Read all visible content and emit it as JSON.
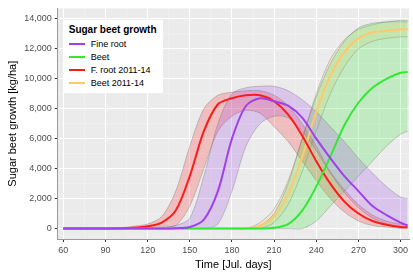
{
  "chart_data": {
    "type": "line",
    "x_label": "Time [Jul. days]",
    "y_label": "Sugar beet growth [kg/ha]",
    "legend_title": "Sugar beet growth",
    "legend": "top left",
    "grid": true,
    "x": [
      60,
      70,
      80,
      90,
      100,
      110,
      120,
      130,
      140,
      150,
      160,
      170,
      180,
      190,
      200,
      210,
      220,
      230,
      240,
      250,
      260,
      270,
      280,
      290,
      300,
      305
    ],
    "xlim": [
      56,
      306
    ],
    "xticks": [
      60,
      90,
      120,
      150,
      180,
      210,
      240,
      270,
      300
    ],
    "ylim": [
      -700,
      14700
    ],
    "yticks": [
      0,
      2000,
      4000,
      6000,
      8000,
      10000,
      12000,
      14000
    ],
    "series": [
      {
        "name": "Fine root",
        "color": "#a040e8",
        "values": [
          0,
          0,
          0,
          0,
          0,
          0,
          0,
          0,
          20,
          100,
          600,
          2500,
          6000,
          8200,
          8700,
          8500,
          8200,
          7400,
          6000,
          4700,
          3500,
          2500,
          1500,
          900,
          400,
          200
        ],
        "lower": [
          0,
          0,
          0,
          0,
          0,
          0,
          0,
          0,
          0,
          0,
          0,
          300,
          2500,
          5500,
          7000,
          7500,
          7400,
          6500,
          5200,
          3700,
          2400,
          1400,
          700,
          300,
          100,
          50
        ],
        "upper": [
          0,
          0,
          0,
          0,
          0,
          0,
          0,
          50,
          200,
          700,
          3500,
          7000,
          9000,
          9400,
          9500,
          9500,
          9200,
          8600,
          7800,
          6800,
          5800,
          4700,
          3700,
          2800,
          2100,
          2000
        ]
      },
      {
        "name": "Beet",
        "color": "#33e833",
        "values": [
          0,
          0,
          0,
          0,
          0,
          0,
          0,
          0,
          0,
          0,
          0,
          0,
          0,
          0,
          0,
          50,
          300,
          1200,
          2800,
          4800,
          6900,
          8400,
          9400,
          10000,
          10400,
          10450
        ],
        "lower": [
          0,
          0,
          0,
          0,
          0,
          0,
          0,
          0,
          0,
          0,
          0,
          0,
          0,
          0,
          0,
          0,
          0,
          0,
          500,
          1500,
          2500,
          3500,
          4500,
          5500,
          6300,
          6500
        ],
        "upper": [
          0,
          0,
          0,
          0,
          0,
          0,
          0,
          0,
          0,
          0,
          0,
          0,
          0,
          0,
          200,
          1000,
          3000,
          6000,
          8800,
          11000,
          12500,
          13400,
          13700,
          13800,
          13900,
          13900
        ]
      },
      {
        "name": "F. root 2011-14",
        "color": "#ff1a1a",
        "values": [
          0,
          0,
          0,
          0,
          20,
          50,
          150,
          400,
          1200,
          3500,
          6500,
          8300,
          8700,
          8900,
          8900,
          8500,
          7600,
          6200,
          4500,
          3000,
          1800,
          1000,
          500,
          250,
          100,
          80
        ],
        "lower": [
          0,
          0,
          0,
          0,
          0,
          0,
          50,
          150,
          200,
          1500,
          4000,
          6500,
          7500,
          7900,
          7700,
          6800,
          5800,
          4500,
          3200,
          2000,
          1100,
          500,
          200,
          100,
          0,
          0
        ],
        "upper": [
          0,
          0,
          0,
          0,
          50,
          150,
          300,
          800,
          2500,
          5500,
          8000,
          8900,
          9100,
          9200,
          9200,
          8900,
          8200,
          7000,
          5500,
          3800,
          2600,
          1600,
          900,
          500,
          300,
          250
        ]
      },
      {
        "name": "Beet 2011-14",
        "color": "#ffc870",
        "values": [
          0,
          0,
          0,
          0,
          0,
          0,
          0,
          0,
          0,
          0,
          0,
          0,
          0,
          0,
          200,
          800,
          2300,
          4800,
          7800,
          10200,
          11800,
          12700,
          13100,
          13200,
          13300,
          13300
        ],
        "lower": [
          0,
          0,
          0,
          0,
          0,
          0,
          0,
          0,
          0,
          0,
          0,
          0,
          0,
          0,
          0,
          400,
          1600,
          3800,
          6500,
          9000,
          10800,
          12000,
          12500,
          12700,
          12800,
          12800
        ],
        "upper": [
          0,
          0,
          0,
          0,
          0,
          0,
          0,
          0,
          0,
          0,
          0,
          0,
          0,
          0,
          400,
          1300,
          3200,
          6000,
          9000,
          11300,
          12600,
          13300,
          13600,
          13800,
          13800,
          13800
        ]
      }
    ]
  }
}
